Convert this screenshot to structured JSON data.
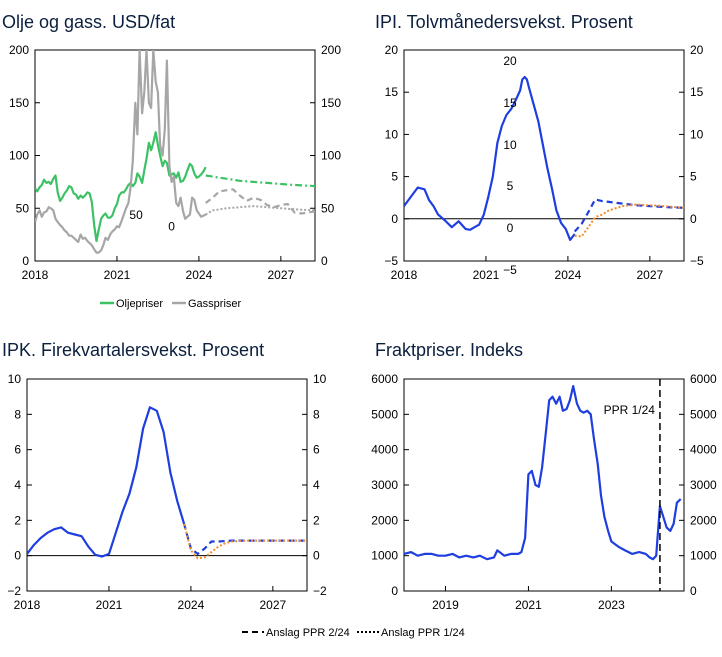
{
  "legend_bottom": {
    "ppr2": "Anslag PPR 2/24",
    "ppr1": "Anslag PPR 1/24"
  },
  "chart_data": [
    {
      "type": "line",
      "title": "Olje og gass. USD/fat",
      "xlim": [
        2018,
        2028.25
      ],
      "ylim": [
        0,
        200
      ],
      "xticks": [
        "2018",
        "2021",
        "2024",
        "2027"
      ],
      "yticks_left": [
        "0",
        "50",
        "100",
        "150",
        "200"
      ],
      "yticks_right": [
        "0",
        "50",
        "100",
        "150",
        "200"
      ],
      "legend": [
        "Oljepriser",
        "Gasspriser"
      ],
      "annotations": [
        {
          "text": "50",
          "x": 2021.7,
          "y": 40
        },
        {
          "text": "0",
          "x": 2023.0,
          "y": 29
        }
      ],
      "grid": false,
      "series": [
        {
          "name": "Oljepriser",
          "color": "#3cc265",
          "x": [
            2018,
            2018.08,
            2018.17,
            2018.25,
            2018.33,
            2018.42,
            2018.5,
            2018.58,
            2018.67,
            2018.75,
            2018.83,
            2018.92,
            2019,
            2019.08,
            2019.17,
            2019.25,
            2019.33,
            2019.42,
            2019.5,
            2019.58,
            2019.67,
            2019.75,
            2019.83,
            2019.92,
            2020,
            2020.08,
            2020.17,
            2020.25,
            2020.33,
            2020.42,
            2020.5,
            2020.58,
            2020.67,
            2020.75,
            2020.83,
            2020.92,
            2021,
            2021.08,
            2021.17,
            2021.25,
            2021.33,
            2021.42,
            2021.5,
            2021.58,
            2021.67,
            2021.75,
            2021.83,
            2021.92,
            2022,
            2022.08,
            2022.17,
            2022.25,
            2022.33,
            2022.42,
            2022.5,
            2022.58,
            2022.67,
            2022.75,
            2022.83,
            2022.92,
            2023,
            2023.08,
            2023.17,
            2023.25,
            2023.33,
            2023.42,
            2023.5,
            2023.58,
            2023.67,
            2023.75,
            2023.83,
            2023.92,
            2024,
            2024.08,
            2024.17,
            2024.25
          ],
          "y": [
            69,
            66,
            70,
            72,
            77,
            74,
            75,
            73,
            78,
            81,
            65,
            57,
            60,
            64,
            67,
            71,
            70,
            64,
            63,
            59,
            62,
            60,
            62,
            65,
            64,
            56,
            33,
            19,
            29,
            40,
            43,
            45,
            41,
            41,
            43,
            50,
            54,
            62,
            65,
            65,
            68,
            72,
            74,
            71,
            74,
            83,
            80,
            74,
            86,
            97,
            112,
            105,
            112,
            122,
            110,
            100,
            90,
            95,
            93,
            81,
            82,
            83,
            79,
            84,
            75,
            76,
            80,
            86,
            92,
            90,
            83,
            79,
            80,
            82,
            85,
            89
          ]
        },
        {
          "name": "Gasspriser",
          "color": "#a6a6a6",
          "x": [
            2018,
            2018.08,
            2018.17,
            2018.25,
            2018.33,
            2018.42,
            2018.5,
            2018.58,
            2018.67,
            2018.75,
            2018.83,
            2018.92,
            2019,
            2019.08,
            2019.17,
            2019.25,
            2019.33,
            2019.42,
            2019.5,
            2019.58,
            2019.67,
            2019.75,
            2019.83,
            2019.92,
            2020,
            2020.08,
            2020.17,
            2020.25,
            2020.33,
            2020.42,
            2020.5,
            2020.58,
            2020.67,
            2020.75,
            2020.83,
            2020.92,
            2021,
            2021.08,
            2021.17,
            2021.25,
            2021.33,
            2021.42,
            2021.5,
            2021.58,
            2021.67,
            2021.75,
            2021.83,
            2021.92,
            2022,
            2022.08,
            2022.17,
            2022.25,
            2022.33,
            2022.42,
            2022.5,
            2022.58,
            2022.67,
            2022.75,
            2022.83,
            2022.92,
            2023,
            2023.08,
            2023.17,
            2023.25,
            2023.33,
            2023.42,
            2023.5,
            2023.58,
            2023.67,
            2023.75,
            2023.83,
            2023.92,
            2024,
            2024.08,
            2024.17,
            2024.25
          ],
          "y": [
            37,
            44,
            48,
            42,
            46,
            47,
            51,
            50,
            48,
            40,
            37,
            34,
            32,
            29,
            27,
            24,
            24,
            22,
            20,
            18,
            25,
            21,
            22,
            19,
            17,
            15,
            11,
            8,
            8,
            10,
            15,
            22,
            20,
            25,
            28,
            30,
            33,
            32,
            38,
            44,
            50,
            55,
            70,
            95,
            150,
            120,
            200,
            140,
            160,
            200,
            150,
            145,
            200,
            170,
            160,
            110,
            100,
            125,
            190,
            90,
            75,
            80,
            55,
            52,
            60,
            47,
            40,
            42,
            44,
            60,
            58,
            48,
            45,
            42,
            43,
            44
          ]
        },
        {
          "name": "Oljepriser PPR 2/24",
          "color": "#3cc265",
          "style": "dashdot",
          "x": [
            2024.25,
            2024.5,
            2025,
            2025.5,
            2026,
            2026.5,
            2027,
            2027.5,
            2028.25
          ],
          "y": [
            81,
            80,
            78,
            76,
            75,
            74,
            73,
            72,
            71
          ]
        },
        {
          "name": "Gasspriser PPR 2/24",
          "color": "#a6a6a6",
          "style": "dashed",
          "x": [
            2024.25,
            2024.5,
            2024.75,
            2025,
            2025.25,
            2025.5,
            2025.75,
            2026,
            2026.25,
            2026.5,
            2026.75,
            2027,
            2027.25,
            2027.5,
            2027.75,
            2028,
            2028.25
          ],
          "y": [
            55,
            60,
            66,
            67,
            68,
            62,
            57,
            60,
            58,
            53,
            51,
            53,
            54,
            46,
            45,
            46,
            47
          ]
        },
        {
          "name": "Gasspriser PPR 1/24",
          "color": "#a6a6a6",
          "style": "dotted",
          "x": [
            2024.25,
            2024.5,
            2025,
            2025.5,
            2026,
            2026.5,
            2027,
            2027.5,
            2028.25
          ],
          "y": [
            44,
            48,
            50,
            51,
            52,
            51,
            50,
            49,
            48
          ]
        }
      ]
    },
    {
      "type": "line",
      "title": "IPI. Tolvmånedersvekst. Prosent",
      "xlim": [
        2018,
        2028.25
      ],
      "ylim": [
        -5,
        20
      ],
      "xticks": [
        "2018",
        "2021",
        "2024",
        "2027"
      ],
      "yticks_left": [
        "−5",
        "0",
        "5",
        "10",
        "15",
        "20"
      ],
      "yticks_right": [
        "−5",
        "0",
        "5",
        "10",
        "15",
        "20"
      ],
      "grid": false,
      "series": [
        {
          "name": "IPI",
          "color": "#1f3ee0",
          "x": [
            2018,
            2018.25,
            2018.5,
            2018.75,
            2018.92,
            2019.08,
            2019.25,
            2019.5,
            2019.75,
            2020,
            2020.25,
            2020.42,
            2020.58,
            2020.75,
            2020.92,
            2021.08,
            2021.25,
            2021.42,
            2021.58,
            2021.75,
            2021.92,
            2022.08,
            2022.25,
            2022.33,
            2022.42,
            2022.5,
            2022.58,
            2022.75,
            2022.92,
            2023.08,
            2023.25,
            2023.42,
            2023.58,
            2023.75,
            2023.92,
            2024.08,
            2024.25
          ],
          "y": [
            1.5,
            2.6,
            3.7,
            3.5,
            2.2,
            1.5,
            0.5,
            -0.2,
            -1,
            -0.3,
            -1.2,
            -1.3,
            -1,
            -0.7,
            0.5,
            2.5,
            5,
            9,
            11,
            12.3,
            13,
            14,
            15.2,
            16.5,
            16.8,
            16.5,
            15.5,
            13.5,
            11.5,
            8.8,
            6,
            3.5,
            1,
            -0.5,
            -1.2,
            -2.5,
            -1.8
          ]
        },
        {
          "name": "IPI PPR 2/24",
          "color": "#1f3ee0",
          "style": "dashed",
          "x": [
            2024.25,
            2024.5,
            2024.75,
            2025,
            2025.25,
            2025.5,
            2026,
            2026.5,
            2027,
            2027.5,
            2028.25
          ],
          "y": [
            -1.5,
            -0.6,
            0.8,
            2.3,
            2.1,
            2.0,
            1.8,
            1.6,
            1.5,
            1.4,
            1.3
          ]
        },
        {
          "name": "IPI PPR 1/24",
          "color": "#f28c28",
          "style": "dotted",
          "x": [
            2024.25,
            2024.5,
            2024.75,
            2025,
            2025.25,
            2025.5,
            2026,
            2026.5,
            2027,
            2027.5,
            2028.25
          ],
          "y": [
            -2.0,
            -2.1,
            -1.0,
            0.2,
            0.5,
            1.0,
            1.5,
            1.7,
            1.6,
            1.5,
            1.3
          ]
        }
      ]
    },
    {
      "type": "line",
      "title": "IPK. Firekvartalersvekst. Prosent",
      "xlim": [
        2018,
        2028.25
      ],
      "ylim": [
        -2,
        10
      ],
      "xticks": [
        "2018",
        "2021",
        "2024",
        "2027"
      ],
      "yticks_left": [
        "−2",
        "0",
        "2",
        "4",
        "6",
        "8",
        "10"
      ],
      "yticks_right": [
        "−2",
        "0",
        "2",
        "4",
        "6",
        "8",
        "10"
      ],
      "grid": false,
      "series": [
        {
          "name": "IPK",
          "color": "#1f3ee0",
          "x": [
            2018,
            2018.25,
            2018.5,
            2018.75,
            2019,
            2019.25,
            2019.5,
            2019.75,
            2020,
            2020.25,
            2020.5,
            2020.75,
            2021,
            2021.25,
            2021.5,
            2021.75,
            2022,
            2022.25,
            2022.5,
            2022.75,
            2023,
            2023.25,
            2023.5,
            2023.75
          ],
          "y": [
            0.1,
            0.6,
            1,
            1.3,
            1.5,
            1.6,
            1.3,
            1.2,
            1.1,
            0.5,
            0.05,
            -0.05,
            0.1,
            1.3,
            2.5,
            3.5,
            5,
            7.2,
            8.4,
            8.2,
            7,
            4.7,
            3.1,
            1.8
          ]
        },
        {
          "name": "IPK PPR 2/24",
          "color": "#1f3ee0",
          "style": "dashed",
          "x": [
            2023.75,
            2024,
            2024.25,
            2024.5,
            2024.75,
            2025,
            2025.5,
            2026,
            2026.5,
            2027,
            2027.5,
            2028.25
          ],
          "y": [
            1.8,
            0.4,
            0.1,
            0.4,
            0.8,
            0.8,
            0.85,
            0.85,
            0.85,
            0.85,
            0.85,
            0.85
          ]
        },
        {
          "name": "IPK PPR 1/24",
          "color": "#f28c28",
          "style": "dotted",
          "x": [
            2023.75,
            2024,
            2024.25,
            2024.5,
            2024.75,
            2025,
            2025.25,
            2025.5,
            2026,
            2026.5,
            2027,
            2027.5,
            2028.25
          ],
          "y": [
            1.8,
            0.3,
            -0.15,
            -0.1,
            0.2,
            0.5,
            0.7,
            0.8,
            0.85,
            0.85,
            0.85,
            0.85,
            0.85
          ]
        }
      ]
    },
    {
      "type": "line",
      "title": "Fraktpriser. Indeks",
      "xlim": [
        2018,
        2024.75
      ],
      "ylim": [
        0,
        6000
      ],
      "xticks": [
        "2019",
        "2021",
        "2023"
      ],
      "yticks_left": [
        "0",
        "1000",
        "2000",
        "3000",
        "4000",
        "5000",
        "6000"
      ],
      "yticks_right": [
        "0",
        "1000",
        "2000",
        "3000",
        "4000",
        "5000",
        "6000"
      ],
      "vline": {
        "x": 2024.17,
        "label": "PPR 1/24"
      },
      "grid": false,
      "series": [
        {
          "name": "Fraktpriser",
          "color": "#1f3ee0",
          "x": [
            2018,
            2018.17,
            2018.33,
            2018.5,
            2018.67,
            2018.83,
            2019,
            2019.17,
            2019.33,
            2019.5,
            2019.67,
            2019.83,
            2020,
            2020.17,
            2020.25,
            2020.42,
            2020.58,
            2020.75,
            2020.83,
            2020.92,
            2021,
            2021.08,
            2021.17,
            2021.25,
            2021.33,
            2021.42,
            2021.5,
            2021.58,
            2021.67,
            2021.75,
            2021.83,
            2021.92,
            2022,
            2022.08,
            2022.17,
            2022.25,
            2022.33,
            2022.42,
            2022.5,
            2022.58,
            2022.67,
            2022.75,
            2022.83,
            2022.92,
            2023,
            2023.17,
            2023.33,
            2023.5,
            2023.67,
            2023.83,
            2023.92,
            2024,
            2024.08,
            2024.17,
            2024.25,
            2024.33,
            2024.42,
            2024.5,
            2024.58,
            2024.67
          ],
          "y": [
            1050,
            1100,
            1000,
            1050,
            1050,
            1000,
            1000,
            1050,
            950,
            1000,
            950,
            1000,
            900,
            950,
            1150,
            1000,
            1050,
            1050,
            1100,
            1500,
            3300,
            3400,
            3000,
            2950,
            3500,
            4500,
            5400,
            5500,
            5300,
            5500,
            5100,
            5150,
            5400,
            5800,
            5300,
            5100,
            5050,
            5100,
            5000,
            4300,
            3600,
            2700,
            2100,
            1700,
            1400,
            1250,
            1150,
            1050,
            1100,
            1050,
            950,
            900,
            1000,
            2400,
            2100,
            1800,
            1700,
            1900,
            2500,
            2600
          ]
        }
      ]
    }
  ]
}
